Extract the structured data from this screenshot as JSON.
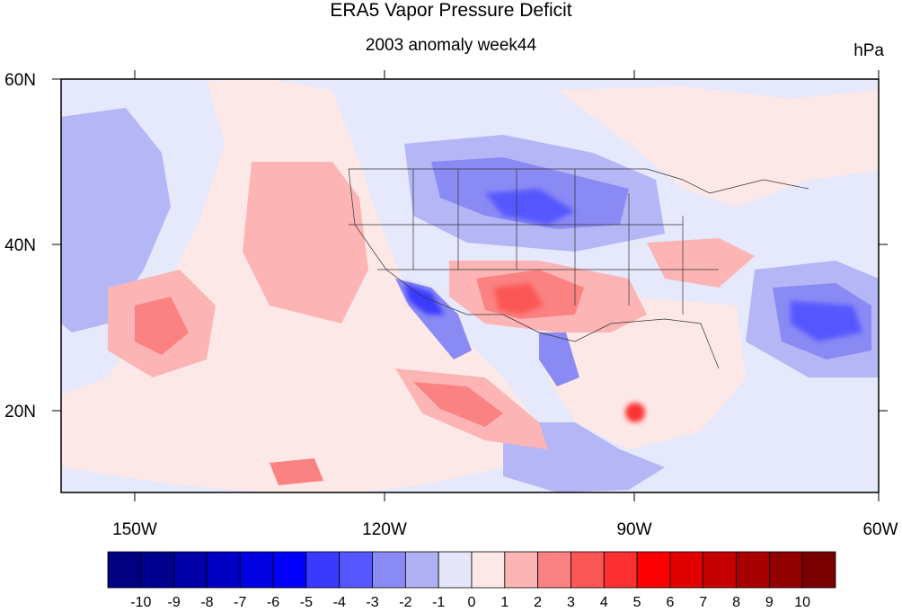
{
  "title": "ERA5 Vapor Pressure Deficit",
  "subtitle": "2003 anomaly week44",
  "units": "hPa",
  "map": {
    "projection": "cylindrical equidistant",
    "lon_range": [
      -160,
      -60
    ],
    "lat_range": [
      10,
      60
    ],
    "lat_labels": [
      "20N",
      "40N",
      "60N"
    ],
    "lon_labels": [
      "150W",
      "120W",
      "90W",
      "60W"
    ],
    "colors": {
      "ocean_background": "#e6e8fb",
      "coast": "#222222"
    }
  },
  "colorbar": {
    "labels": [
      "-10",
      "-9",
      "-8",
      "-7",
      "-6",
      "-5",
      "-4",
      "-3",
      "-2",
      "-1",
      "0",
      "1",
      "2",
      "3",
      "4",
      "5",
      "6",
      "7",
      "8",
      "9",
      "10"
    ],
    "colors": [
      "#000080",
      "#00008f",
      "#0000a6",
      "#0000c5",
      "#0000e0",
      "#0000fa",
      "#3a3aff",
      "#5656ff",
      "#8a8af5",
      "#b0b0f5",
      "#e6e6fa",
      "#fde8e8",
      "#fcb4b4",
      "#fb8282",
      "#fb5656",
      "#fb3030",
      "#fa0000",
      "#e00000",
      "#c50000",
      "#a80000",
      "#900000",
      "#7a0000"
    ]
  }
}
